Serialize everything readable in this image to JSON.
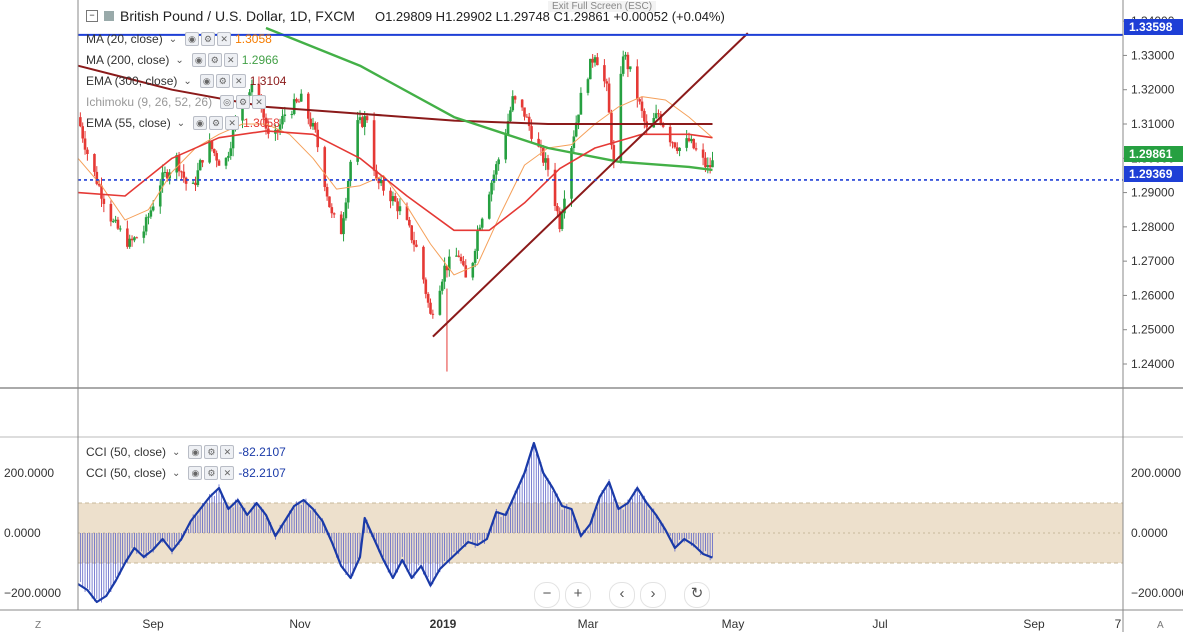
{
  "header": {
    "symbol": "British Pound / U.S. Dollar, 1D, FXCM",
    "ohlc": "O1.29809  H1.29902  L1.29748  C1.29861  +0.00052 (+0.04%)",
    "exit_fullscreen": "Exit Full Screen (ESC)"
  },
  "indicators": [
    {
      "label": "MA (20, close)",
      "value": "1.3058",
      "color": "#f57c00"
    },
    {
      "label": "MA (200, close)",
      "value": "1.2966",
      "color": "#43a047"
    },
    {
      "label": "EMA (300, close)",
      "value": "1.3104",
      "color": "#8b1a1a"
    },
    {
      "label": "Ichimoku (9, 26, 52, 26)",
      "value": "",
      "color": "#888888"
    },
    {
      "label": "EMA (55, close)",
      "value": "1.3058",
      "color": "#e53935"
    }
  ],
  "cci_legends": [
    {
      "label": "CCI (50, close)",
      "value": "-82.2107"
    },
    {
      "label": "CCI (50, close)",
      "value": "-82.2107"
    }
  ],
  "price_tags": {
    "resistance": "1.33598",
    "last": "1.29861",
    "support": "1.29369"
  },
  "nav": {
    "zoom_out": "−",
    "zoom_in": "+",
    "back": "‹",
    "forward": "›",
    "reset": "↻"
  },
  "corners": {
    "left": "Z",
    "right": "A"
  },
  "colors": {
    "up": "#26a041",
    "down": "#e53935",
    "ma20": "#f5a05a",
    "ma200": "#43b047",
    "ema300": "#8b1a1a",
    "ema55": "#e53935",
    "trend": "#8b1a1a",
    "resistance": "#1e3fd6",
    "support": "#1e3fd6",
    "cci": "#1a3aa8",
    "band": "#ede0cc"
  },
  "chart_data": [
    {
      "type": "candlestick",
      "title": "British Pound / U.S. Dollar, 1D, FXCM",
      "y_ticks": [
        1.24,
        1.25,
        1.26,
        1.27,
        1.28,
        1.29,
        1.3,
        1.31,
        1.32,
        1.33,
        1.34
      ],
      "ylim": [
        1.233,
        1.3415
      ],
      "x_ticks": [
        "Sep",
        "Nov",
        "2019",
        "Mar",
        "May",
        "Jul",
        "Sep"
      ],
      "close_path": [
        [
          0,
          1.312
        ],
        [
          5,
          1.299
        ],
        [
          15,
          1.281
        ],
        [
          22,
          1.275
        ],
        [
          28,
          1.279
        ],
        [
          35,
          1.293
        ],
        [
          42,
          1.3
        ],
        [
          48,
          1.289
        ],
        [
          55,
          1.305
        ],
        [
          62,
          1.297
        ],
        [
          70,
          1.318
        ],
        [
          76,
          1.321
        ],
        [
          82,
          1.303
        ],
        [
          88,
          1.313
        ],
        [
          95,
          1.317
        ],
        [
          101,
          1.307
        ],
        [
          108,
          1.283
        ],
        [
          112,
          1.279
        ],
        [
          118,
          1.309
        ],
        [
          123,
          1.312
        ],
        [
          127,
          1.293
        ],
        [
          132,
          1.29
        ],
        [
          138,
          1.284
        ],
        [
          145,
          1.272
        ],
        [
          150,
          1.254
        ],
        [
          156,
          1.268
        ],
        [
          162,
          1.272
        ],
        [
          166,
          1.262
        ],
        [
          170,
          1.279
        ],
        [
          175,
          1.291
        ],
        [
          180,
          1.302
        ],
        [
          185,
          1.317
        ],
        [
          190,
          1.313
        ],
        [
          195,
          1.304
        ],
        [
          200,
          1.297
        ],
        [
          205,
          1.281
        ],
        [
          210,
          1.304
        ],
        [
          215,
          1.321
        ],
        [
          220,
          1.331
        ],
        [
          225,
          1.32
        ],
        [
          228,
          1.298
        ],
        [
          232,
          1.331
        ],
        [
          236,
          1.323
        ],
        [
          242,
          1.308
        ],
        [
          247,
          1.313
        ],
        [
          252,
          1.306
        ],
        [
          256,
          1.303
        ],
        [
          260,
          1.305
        ],
        [
          264,
          1.301
        ],
        [
          268,
          1.297
        ],
        [
          270,
          1.2986
        ]
      ],
      "ema300_path": [
        [
          0,
          1.327
        ],
        [
          40,
          1.32
        ],
        [
          80,
          1.315
        ],
        [
          120,
          1.313
        ],
        [
          160,
          1.311
        ],
        [
          200,
          1.31
        ],
        [
          240,
          1.31
        ],
        [
          270,
          1.31
        ]
      ],
      "ma200_path": [
        [
          80,
          1.338
        ],
        [
          120,
          1.327
        ],
        [
          160,
          1.312
        ],
        [
          200,
          1.303
        ],
        [
          230,
          1.299
        ],
        [
          260,
          1.2975
        ],
        [
          270,
          1.2966
        ]
      ],
      "ema55_path": [
        [
          0,
          1.29
        ],
        [
          20,
          1.289
        ],
        [
          40,
          1.3
        ],
        [
          60,
          1.306
        ],
        [
          80,
          1.308
        ],
        [
          100,
          1.307
        ],
        [
          120,
          1.3
        ],
        [
          140,
          1.289
        ],
        [
          160,
          1.279
        ],
        [
          175,
          1.279
        ],
        [
          190,
          1.287
        ],
        [
          205,
          1.297
        ],
        [
          220,
          1.303
        ],
        [
          240,
          1.307
        ],
        [
          260,
          1.307
        ],
        [
          270,
          1.306
        ]
      ],
      "ma20_path": [
        [
          0,
          1.3
        ],
        [
          10,
          1.292
        ],
        [
          20,
          1.282
        ],
        [
          30,
          1.285
        ],
        [
          40,
          1.296
        ],
        [
          50,
          1.303
        ],
        [
          60,
          1.307
        ],
        [
          70,
          1.31
        ],
        [
          80,
          1.31
        ],
        [
          90,
          1.307
        ],
        [
          100,
          1.3
        ],
        [
          110,
          1.291
        ],
        [
          120,
          1.292
        ],
        [
          130,
          1.295
        ],
        [
          140,
          1.286
        ],
        [
          150,
          1.275
        ],
        [
          160,
          1.266
        ],
        [
          170,
          1.269
        ],
        [
          180,
          1.284
        ],
        [
          190,
          1.298
        ],
        [
          200,
          1.303
        ],
        [
          210,
          1.304
        ],
        [
          220,
          1.31
        ],
        [
          230,
          1.315
        ],
        [
          240,
          1.318
        ],
        [
          250,
          1.317
        ],
        [
          260,
          1.312
        ],
        [
          270,
          1.306
        ]
      ],
      "trendline": [
        [
          151,
          1.248
        ],
        [
          285,
          1.3365
        ]
      ],
      "horizontal_lines": [
        1.33598,
        1.29369
      ]
    },
    {
      "type": "area",
      "title": "CCI (50, close)",
      "y_ticks": [
        -200,
        0,
        200
      ],
      "ylim": [
        -250,
        310
      ],
      "band": [
        -100,
        100
      ],
      "cci_path": [
        [
          0,
          -170
        ],
        [
          4,
          -190
        ],
        [
          8,
          -230
        ],
        [
          12,
          -210
        ],
        [
          16,
          -160
        ],
        [
          20,
          -100
        ],
        [
          24,
          -50
        ],
        [
          28,
          -80
        ],
        [
          32,
          -55
        ],
        [
          36,
          -20
        ],
        [
          40,
          -60
        ],
        [
          44,
          -20
        ],
        [
          48,
          40
        ],
        [
          52,
          80
        ],
        [
          56,
          120
        ],
        [
          60,
          150
        ],
        [
          64,
          80
        ],
        [
          68,
          110
        ],
        [
          72,
          60
        ],
        [
          76,
          100
        ],
        [
          80,
          60
        ],
        [
          84,
          -10
        ],
        [
          88,
          40
        ],
        [
          92,
          90
        ],
        [
          96,
          110
        ],
        [
          100,
          80
        ],
        [
          104,
          40
        ],
        [
          108,
          -30
        ],
        [
          112,
          -110
        ],
        [
          116,
          -150
        ],
        [
          120,
          -80
        ],
        [
          122,
          50
        ],
        [
          126,
          -20
        ],
        [
          130,
          -90
        ],
        [
          134,
          -150
        ],
        [
          138,
          -90
        ],
        [
          142,
          -150
        ],
        [
          146,
          -110
        ],
        [
          150,
          -175
        ],
        [
          154,
          -120
        ],
        [
          158,
          -90
        ],
        [
          162,
          -60
        ],
        [
          166,
          -30
        ],
        [
          170,
          -40
        ],
        [
          174,
          -20
        ],
        [
          178,
          70
        ],
        [
          182,
          60
        ],
        [
          186,
          130
        ],
        [
          190,
          200
        ],
        [
          194,
          300
        ],
        [
          198,
          200
        ],
        [
          202,
          150
        ],
        [
          206,
          90
        ],
        [
          210,
          80
        ],
        [
          214,
          -10
        ],
        [
          218,
          30
        ],
        [
          222,
          120
        ],
        [
          226,
          170
        ],
        [
          230,
          80
        ],
        [
          234,
          100
        ],
        [
          238,
          150
        ],
        [
          242,
          100
        ],
        [
          246,
          60
        ],
        [
          250,
          10
        ],
        [
          254,
          -50
        ],
        [
          258,
          -20
        ],
        [
          262,
          -40
        ],
        [
          266,
          -70
        ],
        [
          270,
          -82
        ]
      ],
      "last_value": -82.2107
    }
  ]
}
